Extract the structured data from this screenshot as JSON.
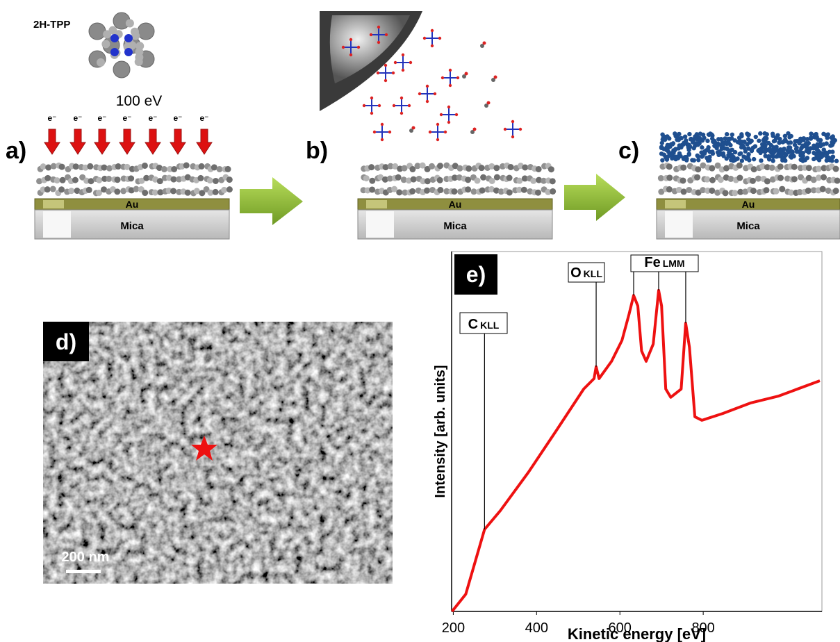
{
  "panel_a": {
    "label": "a)",
    "molecule": "2H-TPP",
    "energy": "100 eV",
    "electron": "e⁻"
  },
  "panel_b": {
    "label": "b)"
  },
  "panel_c": {
    "label": "c)"
  },
  "substrate": {
    "top": "Au",
    "bottom": "Mica"
  },
  "panel_d": {
    "label": "d)",
    "scale_bar": "200 nm"
  },
  "chart_data": {
    "type": "line",
    "label": "e)",
    "xlabel": "Kinetic energy  [eV]",
    "ylabel": "Intensity [arb. units]",
    "xlim": [
      196,
      1085
    ],
    "ylim": [
      0,
      100
    ],
    "xticks": [
      200,
      400,
      600,
      800
    ],
    "color": "#ee1111",
    "x": [
      197,
      230,
      275,
      313,
      380,
      447,
      513,
      538,
      543,
      550,
      580,
      605,
      622,
      633,
      643,
      652,
      663,
      680,
      693,
      700,
      710,
      722,
      747,
      758,
      767,
      780,
      797,
      847,
      913,
      980,
      1080
    ],
    "values": [
      0,
      4.8,
      22.8,
      28,
      38.6,
      50.2,
      61.8,
      64.7,
      68,
      64.7,
      69.5,
      75.3,
      82.6,
      87.8,
      84.9,
      72.4,
      69.5,
      74.3,
      89.2,
      84.9,
      61.8,
      59.5,
      61.8,
      80.1,
      73.4,
      54.1,
      53.1,
      55,
      57.9,
      59.8,
      64.1
    ],
    "annotations": [
      {
        "label": "C",
        "sub": "KLL",
        "x": 275
      },
      {
        "label": "O",
        "sub": "KLL",
        "x": 543
      },
      {
        "label": "Fe",
        "sub": "LMM",
        "x": [
          633,
          693,
          758
        ]
      }
    ]
  }
}
